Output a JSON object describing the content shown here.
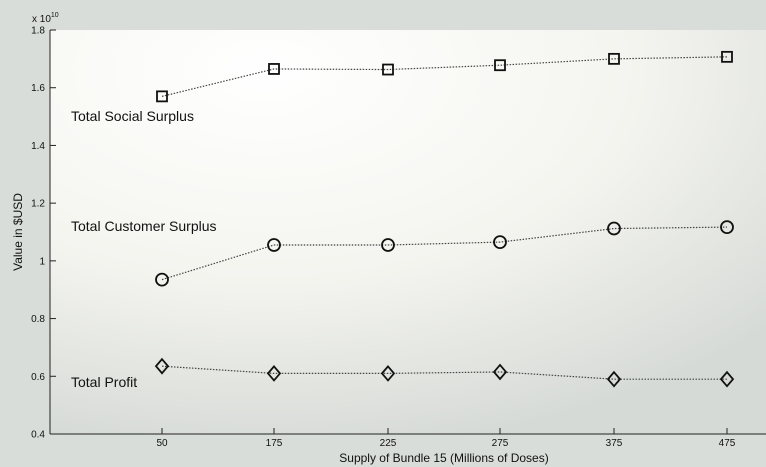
{
  "chart_data": {
    "type": "line",
    "title": "",
    "xlabel": "Supply of Bundle 15 (Millions of Doses)",
    "ylabel": "Value in $USD",
    "y_multiplier_label": "x 10",
    "y_multiplier_exponent": "10",
    "categories": [
      "50",
      "175",
      "225",
      "275",
      "375",
      "475"
    ],
    "ylim": [
      0.4,
      1.8
    ],
    "y_ticks": [
      0.4,
      0.6,
      0.8,
      1,
      1.2,
      1.4,
      1.6,
      1.8
    ],
    "y_tick_labels": [
      "0.4",
      "0.6",
      "0.8",
      "1",
      "1.2",
      "1.4",
      "1.6",
      "1.8"
    ],
    "grid": false,
    "series": [
      {
        "name": "Total Social Surplus",
        "marker": "square",
        "values": [
          1.57,
          1.665,
          1.663,
          1.678,
          1.7,
          1.707
        ]
      },
      {
        "name": "Total Customer Surplus",
        "marker": "circle",
        "values": [
          0.935,
          1.055,
          1.055,
          1.065,
          1.112,
          1.117
        ]
      },
      {
        "name": "Total Profit",
        "marker": "diamond",
        "values": [
          0.635,
          0.61,
          0.61,
          0.615,
          0.59,
          0.59
        ]
      }
    ]
  }
}
